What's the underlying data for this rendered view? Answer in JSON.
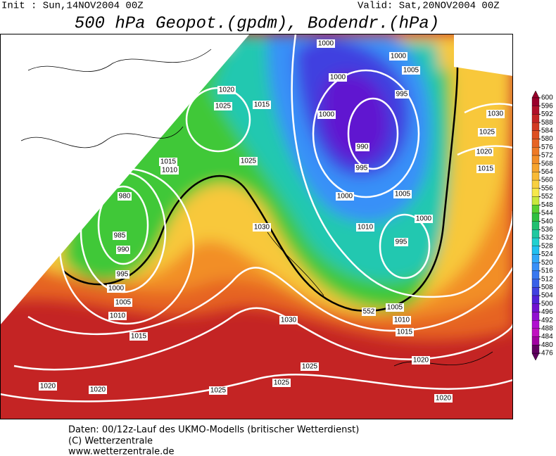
{
  "header": {
    "init": "Init : Sun,14NOV2004 00Z",
    "valid": "Valid: Sat,20NOV2004 00Z",
    "title": "500 hPa Geopot.(gpdm), Bodendr.(hPa)"
  },
  "colorbar": {
    "levels": [
      600,
      596,
      592,
      588,
      584,
      580,
      576,
      572,
      568,
      564,
      560,
      556,
      552,
      548,
      544,
      540,
      536,
      532,
      528,
      524,
      520,
      516,
      512,
      508,
      504,
      500,
      496,
      492,
      488,
      484,
      480,
      476
    ],
    "colors": [
      "#99002b",
      "#b0102a",
      "#c42424",
      "#d23a22",
      "#dd5022",
      "#e66424",
      "#ee7a26",
      "#f28e28",
      "#f6a42e",
      "#f8ba36",
      "#f8d040",
      "#f6e84a",
      "#c8e83c",
      "#58d030",
      "#30c040",
      "#20c070",
      "#20c8a0",
      "#20d0d0",
      "#20c0f0",
      "#30a8f8",
      "#3890f8",
      "#3878f0",
      "#3860e8",
      "#4040e0",
      "#5020d8",
      "#7010d0",
      "#9010d0",
      "#b010d0",
      "#c010c0",
      "#a000a0",
      "#600060"
    ]
  },
  "isobar_labels": [
    "1000",
    "1000",
    "1005",
    "1000",
    "995",
    "1020",
    "1025",
    "1015",
    "1000",
    "1030",
    "1025",
    "990",
    "1020",
    "1015",
    "1010",
    "1025",
    "995",
    "1015",
    "980",
    "1000",
    "1005",
    "1000",
    "985",
    "1030",
    "1010",
    "990",
    "995",
    "995",
    "1000",
    "1005",
    "1005",
    "1010",
    "1030",
    "1010",
    "1015",
    "1015",
    "1020",
    "1025",
    "1020",
    "1020",
    "1025",
    "1025",
    "1020",
    "552"
  ],
  "footer": [
    "Daten: 00/12z-Lauf des UKMO-Modells (britischer Wetterdienst)",
    "(C) Wetterzentrale",
    "www.wetterzentrale.de"
  ]
}
